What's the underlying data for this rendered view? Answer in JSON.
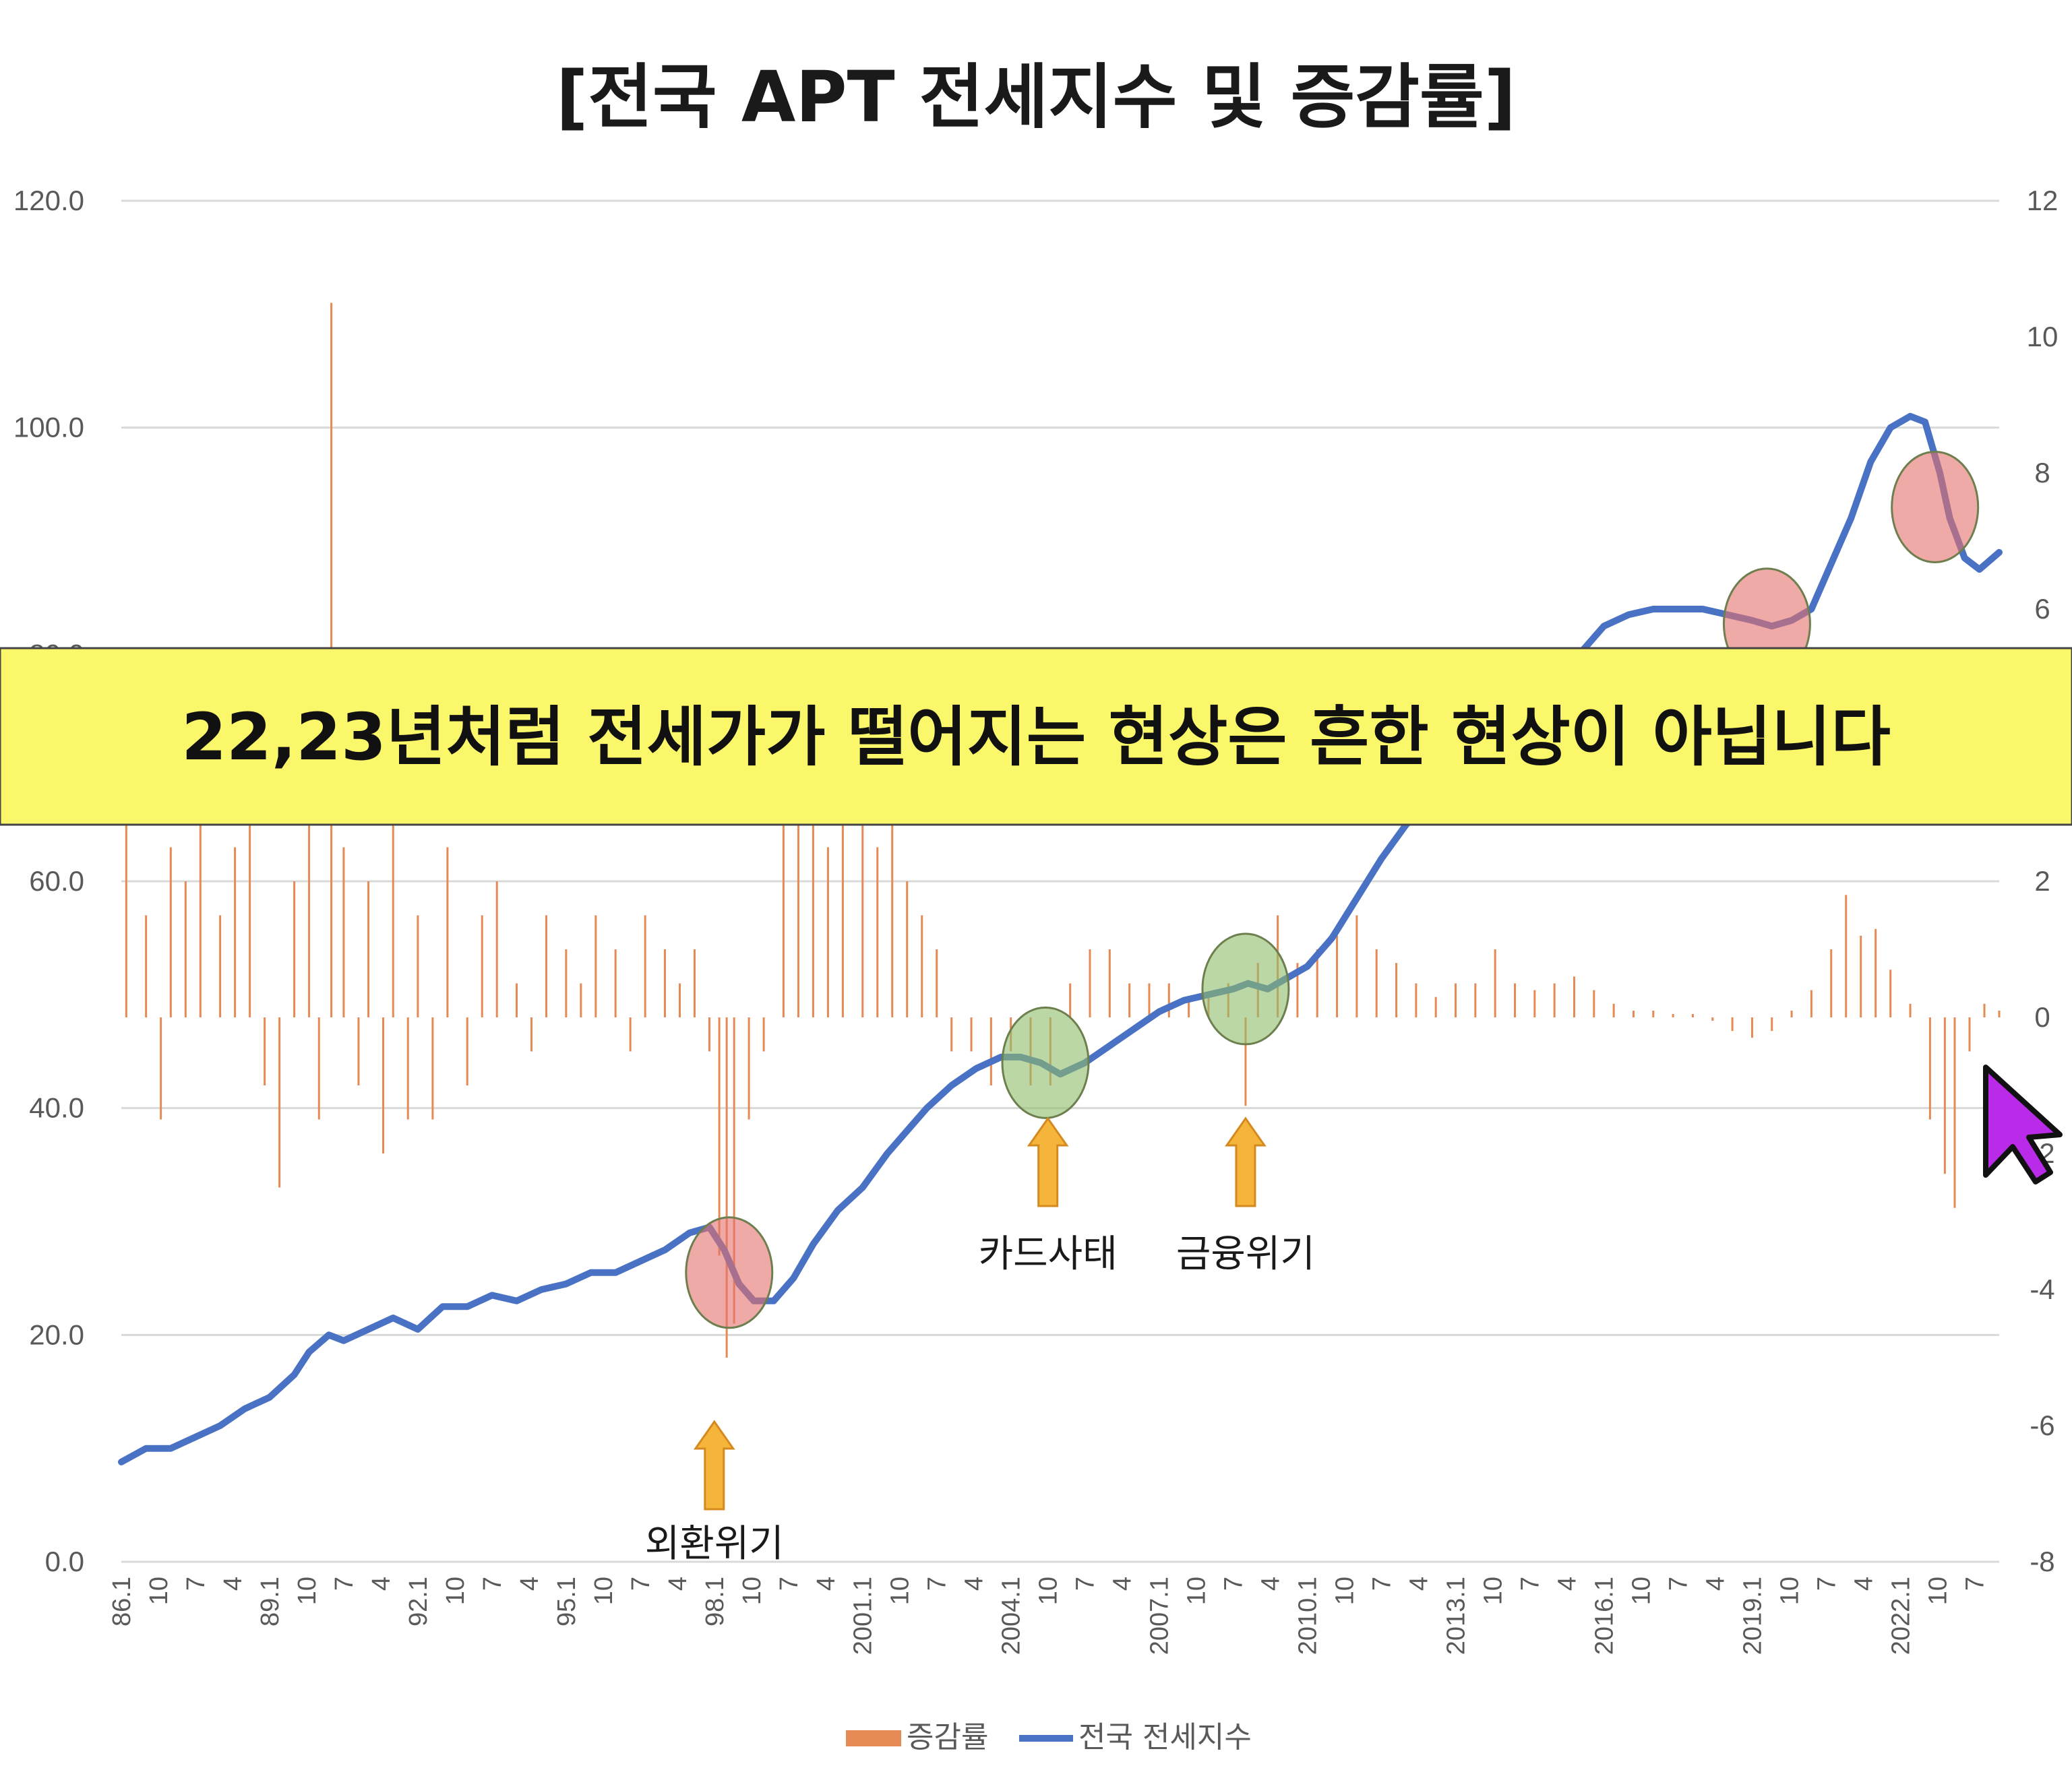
{
  "title": "[전국 APT 전세지수 및 증감률]",
  "banner": {
    "text": "22,23년처럼 전세가가 떨어지는 현상은 흔한 현상이 아닙니다",
    "color": "#fbf76a"
  },
  "legend": [
    {
      "label": "증감률",
      "color": "#e58a55"
    },
    {
      "label": "전국 전세지수",
      "color": "#4a72c4"
    }
  ],
  "annotations": [
    {
      "label": "외환위기",
      "x": 1998.0
    },
    {
      "label": "카드사태",
      "x": 2004.75
    },
    {
      "label": "금융위기",
      "x": 2008.75
    }
  ],
  "chart_data": {
    "type": "bar+line",
    "title": "[전국 APT 전세지수 및 증감률]",
    "x_range": [
      1986.0,
      2024.0
    ],
    "x_tick_labels": [
      "86.1",
      "10",
      "7",
      "4",
      "89.1",
      "10",
      "7",
      "4",
      "92.1",
      "10",
      "7",
      "4",
      "95.1",
      "10",
      "7",
      "4",
      "98.1",
      "10",
      "7",
      "4",
      "2001.1",
      "10",
      "7",
      "4",
      "2004.1",
      "10",
      "7",
      "4",
      "2007.1",
      "10",
      "7",
      "4",
      "2010.1",
      "10",
      "7",
      "4",
      "2013.1",
      "10",
      "7",
      "4",
      "2016.1",
      "10",
      "7",
      "4",
      "2019.1",
      "10",
      "7",
      "4",
      "2022.1",
      "10",
      "7"
    ],
    "y_left": {
      "ticks": [
        "0.0",
        "20.0",
        "40.0",
        "60.0",
        "80.0",
        "100.0",
        "120.0"
      ],
      "range": [
        0,
        120
      ]
    },
    "y_right": {
      "ticks": [
        "-8",
        "-6",
        "-4",
        "-2",
        "0",
        "2",
        "4",
        "6",
        "8",
        "10",
        "12"
      ],
      "range": [
        -8,
        12
      ]
    },
    "grid": true,
    "legend_position": "bottom",
    "series": [
      {
        "name": "전국 전세지수",
        "axis": "left",
        "type": "line",
        "color": "#4a72c4",
        "points": [
          [
            1986.0,
            8.8
          ],
          [
            1986.5,
            10.0
          ],
          [
            1987.0,
            10.0
          ],
          [
            1987.5,
            11.0
          ],
          [
            1988.0,
            12.0
          ],
          [
            1988.5,
            13.5
          ],
          [
            1989.0,
            14.5
          ],
          [
            1989.5,
            16.5
          ],
          [
            1989.8,
            18.5
          ],
          [
            1990.2,
            20.0
          ],
          [
            1990.5,
            19.5
          ],
          [
            1991.0,
            20.5
          ],
          [
            1991.5,
            21.5
          ],
          [
            1992.0,
            20.5
          ],
          [
            1992.5,
            22.5
          ],
          [
            1993.0,
            22.5
          ],
          [
            1993.5,
            23.5
          ],
          [
            1994.0,
            23.0
          ],
          [
            1994.5,
            24.0
          ],
          [
            1995.0,
            24.5
          ],
          [
            1995.5,
            25.5
          ],
          [
            1996.0,
            25.5
          ],
          [
            1996.5,
            26.5
          ],
          [
            1997.0,
            27.5
          ],
          [
            1997.5,
            29.0
          ],
          [
            1997.9,
            29.5
          ],
          [
            1998.2,
            27.5
          ],
          [
            1998.5,
            24.5
          ],
          [
            1998.8,
            23.0
          ],
          [
            1999.2,
            23.0
          ],
          [
            1999.6,
            25.0
          ],
          [
            2000.0,
            28.0
          ],
          [
            2000.5,
            31.0
          ],
          [
            2001.0,
            33.0
          ],
          [
            2001.5,
            36.0
          ],
          [
            2001.9,
            38.0
          ],
          [
            2002.3,
            40.0
          ],
          [
            2002.8,
            42.0
          ],
          [
            2003.3,
            43.5
          ],
          [
            2003.8,
            44.5
          ],
          [
            2004.2,
            44.5
          ],
          [
            2004.6,
            44.0
          ],
          [
            2005.0,
            43.0
          ],
          [
            2005.5,
            44.0
          ],
          [
            2006.0,
            45.5
          ],
          [
            2006.5,
            47.0
          ],
          [
            2007.0,
            48.5
          ],
          [
            2007.5,
            49.5
          ],
          [
            2008.0,
            50.0
          ],
          [
            2008.5,
            50.5
          ],
          [
            2008.8,
            51.0
          ],
          [
            2009.2,
            50.5
          ],
          [
            2009.6,
            51.5
          ],
          [
            2010.0,
            52.5
          ],
          [
            2010.5,
            55.0
          ],
          [
            2011.0,
            58.5
          ],
          [
            2011.5,
            62.0
          ],
          [
            2012.0,
            65.0
          ],
          [
            2012.5,
            67.0
          ],
          [
            2013.0,
            69.0
          ],
          [
            2013.5,
            71.5
          ],
          [
            2014.0,
            73.5
          ],
          [
            2014.5,
            75.5
          ],
          [
            2015.0,
            77.5
          ],
          [
            2015.5,
            80.0
          ],
          [
            2016.0,
            82.5
          ],
          [
            2016.5,
            83.5
          ],
          [
            2017.0,
            84.0
          ],
          [
            2017.5,
            84.0
          ],
          [
            2018.0,
            84.0
          ],
          [
            2018.5,
            83.5
          ],
          [
            2019.0,
            83.0
          ],
          [
            2019.4,
            82.5
          ],
          [
            2019.8,
            83.0
          ],
          [
            2020.2,
            84.0
          ],
          [
            2020.6,
            88.0
          ],
          [
            2021.0,
            92.0
          ],
          [
            2021.4,
            97.0
          ],
          [
            2021.8,
            100.0
          ],
          [
            2022.2,
            101.0
          ],
          [
            2022.5,
            100.5
          ],
          [
            2022.8,
            96.0
          ],
          [
            2023.0,
            92.0
          ],
          [
            2023.3,
            88.5
          ],
          [
            2023.6,
            87.5
          ],
          [
            2024.0,
            89.0
          ]
        ]
      },
      {
        "name": "증감률",
        "axis": "right",
        "type": "bar",
        "color": "#e58a55",
        "points": [
          [
            1986.1,
            3.0
          ],
          [
            1986.5,
            1.5
          ],
          [
            1986.8,
            -1.5
          ],
          [
            1987.0,
            2.5
          ],
          [
            1987.3,
            2.0
          ],
          [
            1987.6,
            3.5
          ],
          [
            1988.0,
            1.5
          ],
          [
            1988.3,
            2.5
          ],
          [
            1988.6,
            3.0
          ],
          [
            1988.9,
            -1.0
          ],
          [
            1989.2,
            -2.5
          ],
          [
            1989.5,
            2.0
          ],
          [
            1989.8,
            3.0
          ],
          [
            1990.0,
            -1.5
          ],
          [
            1990.25,
            10.5
          ],
          [
            1990.5,
            2.5
          ],
          [
            1990.8,
            -1.0
          ],
          [
            1991.0,
            2.0
          ],
          [
            1991.3,
            -2.0
          ],
          [
            1991.5,
            3.5
          ],
          [
            1991.8,
            -1.5
          ],
          [
            1992.0,
            1.5
          ],
          [
            1992.3,
            -1.5
          ],
          [
            1992.6,
            2.5
          ],
          [
            1993.0,
            -1.0
          ],
          [
            1993.3,
            1.5
          ],
          [
            1993.6,
            2.0
          ],
          [
            1994.0,
            0.5
          ],
          [
            1994.3,
            -0.5
          ],
          [
            1994.6,
            1.5
          ],
          [
            1995.0,
            1.0
          ],
          [
            1995.3,
            0.5
          ],
          [
            1995.6,
            1.5
          ],
          [
            1996.0,
            1.0
          ],
          [
            1996.3,
            -0.5
          ],
          [
            1996.6,
            1.5
          ],
          [
            1997.0,
            1.0
          ],
          [
            1997.3,
            0.5
          ],
          [
            1997.6,
            1.0
          ],
          [
            1997.9,
            -0.5
          ],
          [
            1998.1,
            -3.5
          ],
          [
            1998.25,
            -5.0
          ],
          [
            1998.4,
            -4.5
          ],
          [
            1998.7,
            -1.5
          ],
          [
            1999.0,
            -0.5
          ],
          [
            1999.4,
            4.5
          ],
          [
            1999.7,
            3.0
          ],
          [
            2000.0,
            3.5
          ],
          [
            2000.3,
            2.5
          ],
          [
            2000.6,
            4.0
          ],
          [
            2001.0,
            3.0
          ],
          [
            2001.3,
            2.5
          ],
          [
            2001.6,
            3.0
          ],
          [
            2001.9,
            2.0
          ],
          [
            2002.2,
            1.5
          ],
          [
            2002.5,
            1.0
          ],
          [
            2002.8,
            -0.5
          ],
          [
            2003.2,
            -0.5
          ],
          [
            2003.6,
            -1.0
          ],
          [
            2004.0,
            -0.5
          ],
          [
            2004.4,
            -1.0
          ],
          [
            2004.8,
            -1.0
          ],
          [
            2005.2,
            0.5
          ],
          [
            2005.6,
            1.0
          ],
          [
            2006.0,
            1.0
          ],
          [
            2006.4,
            0.5
          ],
          [
            2006.8,
            0.5
          ],
          [
            2007.2,
            0.5
          ],
          [
            2007.6,
            0.3
          ],
          [
            2008.0,
            0.3
          ],
          [
            2008.4,
            0.5
          ],
          [
            2008.75,
            -1.3
          ],
          [
            2009.0,
            0.8
          ],
          [
            2009.4,
            1.5
          ],
          [
            2009.8,
            0.8
          ],
          [
            2010.2,
            1.0
          ],
          [
            2010.6,
            1.2
          ],
          [
            2011.0,
            1.5
          ],
          [
            2011.4,
            1.0
          ],
          [
            2011.8,
            0.8
          ],
          [
            2012.2,
            0.5
          ],
          [
            2012.6,
            0.3
          ],
          [
            2013.0,
            0.5
          ],
          [
            2013.4,
            0.5
          ],
          [
            2013.8,
            1.0
          ],
          [
            2014.2,
            0.5
          ],
          [
            2014.6,
            0.4
          ],
          [
            2015.0,
            0.5
          ],
          [
            2015.4,
            0.6
          ],
          [
            2015.8,
            0.4
          ],
          [
            2016.2,
            0.2
          ],
          [
            2016.6,
            0.1
          ],
          [
            2017.0,
            0.1
          ],
          [
            2017.4,
            0.05
          ],
          [
            2017.8,
            0.05
          ],
          [
            2018.2,
            -0.05
          ],
          [
            2018.6,
            -0.2
          ],
          [
            2019.0,
            -0.3
          ],
          [
            2019.4,
            -0.2
          ],
          [
            2019.8,
            0.1
          ],
          [
            2020.2,
            0.4
          ],
          [
            2020.6,
            1.0
          ],
          [
            2020.9,
            1.8
          ],
          [
            2021.2,
            1.2
          ],
          [
            2021.5,
            1.3
          ],
          [
            2021.8,
            0.7
          ],
          [
            2022.2,
            0.2
          ],
          [
            2022.6,
            -1.5
          ],
          [
            2022.9,
            -2.3
          ],
          [
            2023.1,
            -2.8
          ],
          [
            2023.4,
            -0.5
          ],
          [
            2023.7,
            0.2
          ],
          [
            2024.0,
            0.1
          ]
        ]
      }
    ]
  },
  "colors": {
    "grid": "#d9d9d9",
    "circle_red": "#e5706a",
    "circle_green": "#8fbd6a",
    "arrow": "#f4b53a",
    "cursor": "#b92be8"
  }
}
